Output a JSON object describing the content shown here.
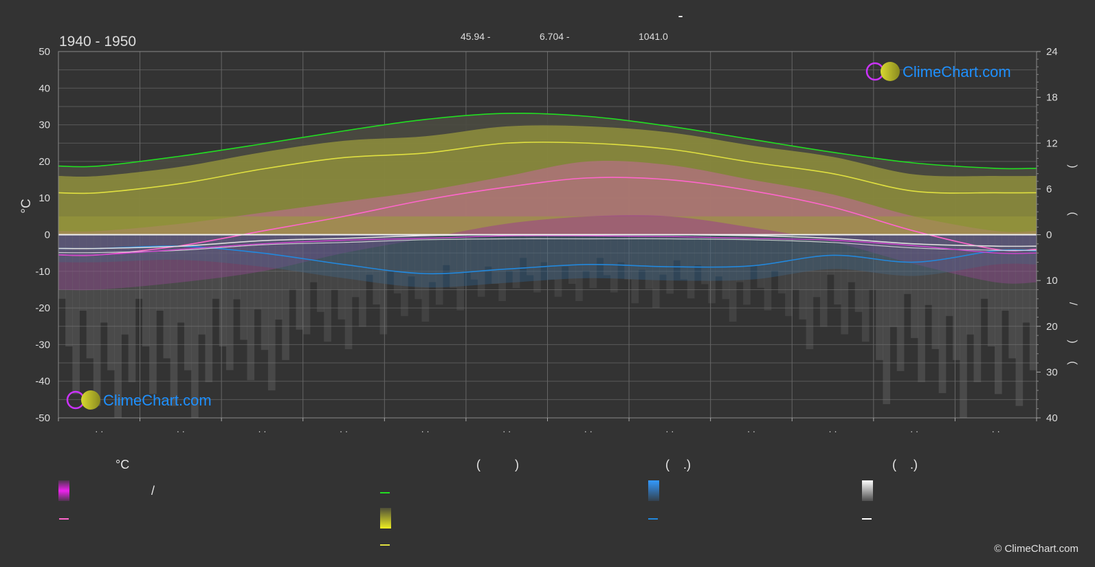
{
  "header": {
    "title": "-",
    "period": "1940 - 1950",
    "stats": [
      "45.94 -",
      "6.704 -",
      "1041.0"
    ]
  },
  "axes": {
    "left_label": "°C",
    "left_ticks": [
      "50",
      "40",
      "30",
      "20",
      "10",
      "0",
      "-10",
      "-20",
      "-30",
      "-40",
      "-50"
    ],
    "right_upper_ticks": [
      "24",
      "18",
      "12",
      "6",
      "0"
    ],
    "right_lower_ticks": [
      "10",
      "20",
      "30",
      "40"
    ],
    "right_labels": [
      ")",
      "(",
      "/",
      ")",
      "("
    ],
    "month_labels": [
      "· ·",
      "· ·",
      "· ·",
      "· ·",
      "· ·",
      "· ·",
      "· ·",
      "· ·",
      "· ·",
      "· ·",
      "· ·",
      "· ·"
    ]
  },
  "brand": {
    "logo_text": "ClimeChart.com",
    "copyright": "© ClimeChart.com"
  },
  "legend": {
    "col1_header": "°C",
    "col1_row1_text": "/",
    "col2_header": "(          )",
    "col3_header": "(    .)",
    "col4_header": "(    .)"
  },
  "colors": {
    "background": "#333333",
    "daylight": "#22dd22",
    "sunshine": "#e0e040",
    "max_temp": "#ff66cc",
    "min_temp_fill": "#cc22cc",
    "rain": "#2288dd",
    "snow": "#dddddd",
    "logo_text": "#1e90ff"
  },
  "chart_data": {
    "type": "line",
    "x": [
      "Jan",
      "Feb",
      "Mar",
      "Apr",
      "May",
      "Jun",
      "Jul",
      "Aug",
      "Sep",
      "Oct",
      "Nov",
      "Dec"
    ],
    "ylim_left": [
      -50,
      50
    ],
    "ylim_right_hours": [
      0,
      24
    ],
    "ylim_right_precip": [
      0,
      40
    ],
    "grid": true,
    "series": [
      {
        "key": "daylight_hours",
        "axis": "hours",
        "color": "#22dd22",
        "values": [
          9.0,
          10.3,
          11.9,
          13.6,
          15.1,
          15.9,
          15.5,
          14.2,
          12.5,
          10.8,
          9.4,
          8.7
        ]
      },
      {
        "key": "sunshine_hours",
        "axis": "hours",
        "color": "#e0e040",
        "values": [
          5.5,
          6.7,
          8.6,
          10.1,
          10.7,
          12.0,
          12.0,
          11.2,
          9.5,
          8.0,
          5.7,
          5.5
        ]
      },
      {
        "key": "mean_temp",
        "axis": "temp",
        "color": "#ff66cc",
        "values": [
          -5.5,
          -3.0,
          1.0,
          5.0,
          9.5,
          13.0,
          15.5,
          15.0,
          12.0,
          7.5,
          1.0,
          -4.0
        ]
      },
      {
        "key": "rain_mm",
        "axis": "precip",
        "color": "#2288dd",
        "values": [
          3.0,
          2.5,
          4.0,
          6.5,
          8.5,
          7.5,
          6.5,
          7.0,
          6.8,
          4.5,
          6.0,
          3.5
        ]
      },
      {
        "key": "snow_mm",
        "axis": "precip",
        "color": "#dddddd",
        "values": [
          3.0,
          2.5,
          1.3,
          0.8,
          0.2,
          0.0,
          0.0,
          0.0,
          0.2,
          0.8,
          2.0,
          2.5
        ]
      }
    ],
    "bands": {
      "max_temp_top": [
        1,
        3,
        6,
        9,
        12,
        16,
        20,
        19,
        15,
        11,
        5,
        1
      ],
      "min_temp_bottom": [
        -15,
        -13,
        -10,
        -5,
        -1,
        3,
        5,
        5,
        2,
        -2,
        -8,
        -13
      ]
    }
  }
}
